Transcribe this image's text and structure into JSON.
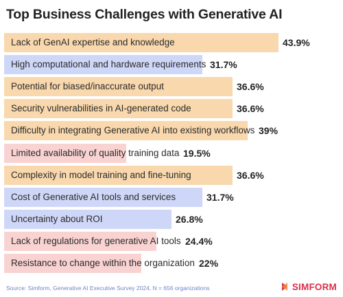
{
  "chart_data": {
    "type": "bar",
    "orientation": "horizontal",
    "title": "Top Business Challenges with Generative AI",
    "categories": [
      "Lack of GenAI expertise and knowledge",
      "High computational and hardware requirements",
      "Potential for biased/inaccurate output",
      "Security vulnerabilities in AI-generated code",
      "Difficulty in integrating Generative AI into existing workflows",
      "Limited availability of quality training data",
      "Complexity in model training and fine-tuning",
      "Cost of Generative AI tools and services",
      "Uncertainty about ROI",
      "Lack of regulations for generative AI tools",
      "Resistance to change within the organization"
    ],
    "values": [
      43.9,
      31.7,
      36.6,
      36.6,
      39,
      19.5,
      36.6,
      31.7,
      26.8,
      24.4,
      22
    ],
    "value_labels": [
      "43.9%",
      "31.7%",
      "36.6%",
      "36.6%",
      "39%",
      "19.5%",
      "36.6%",
      "31.7%",
      "26.8%",
      "24.4%",
      "22%"
    ],
    "bar_colors": [
      "#f9d8ad",
      "#cfd7f8",
      "#f9d8ad",
      "#f9d8ad",
      "#f9d8ad",
      "#f9d2d2",
      "#f9d8ad",
      "#cfd7f8",
      "#cfd7f8",
      "#f9d2d2",
      "#f9d2d2"
    ],
    "xlim": [
      0,
      43.9
    ],
    "grid": false,
    "legend": "none"
  },
  "footer": {
    "source": "Source: Simform, Generative AI Executive Survey 2024, N = 656 organizations",
    "brand": "SIMFORM",
    "brand_color": "#d9304a"
  }
}
